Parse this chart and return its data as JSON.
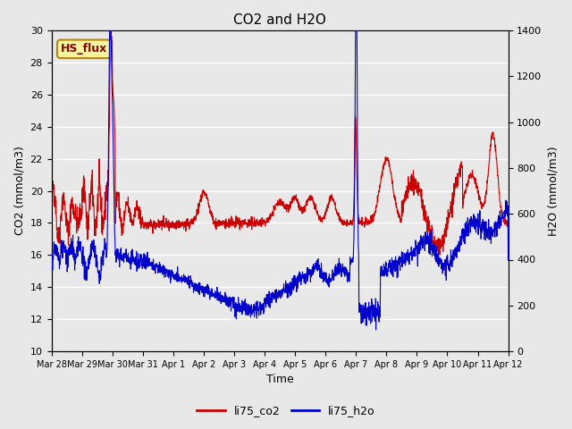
{
  "title": "CO2 and H2O",
  "xlabel": "Time",
  "ylabel_left": "CO2 (mmol/m3)",
  "ylabel_right": "H2O (mmol/m3)",
  "annotation": "HS_flux",
  "ylim_left": [
    10,
    30
  ],
  "ylim_right": [
    0,
    1400
  ],
  "co2_color": "#cc0000",
  "h2o_color": "#0000cc",
  "bg_color": "#e8e8e8",
  "grid_color": "#ffffff",
  "x_tick_labels": [
    "Mar 28",
    "Mar 29",
    "Mar 30",
    "Mar 31",
    "Apr 1",
    "Apr 2",
    "Apr 3",
    "Apr 4",
    "Apr 5",
    "Apr 6",
    "Apr 7",
    "Apr 8",
    "Apr 9",
    "Apr 10",
    "Apr 11",
    "Apr 12"
  ],
  "x_tick_positions": [
    0,
    1,
    2,
    3,
    4,
    5,
    6,
    7,
    8,
    9,
    10,
    11,
    12,
    13,
    14,
    15
  ],
  "yticks_left": [
    10,
    12,
    14,
    16,
    18,
    20,
    22,
    24,
    26,
    28,
    30
  ],
  "yticks_right": [
    0,
    200,
    400,
    600,
    800,
    1000,
    1200,
    1400
  ],
  "seed": 42
}
